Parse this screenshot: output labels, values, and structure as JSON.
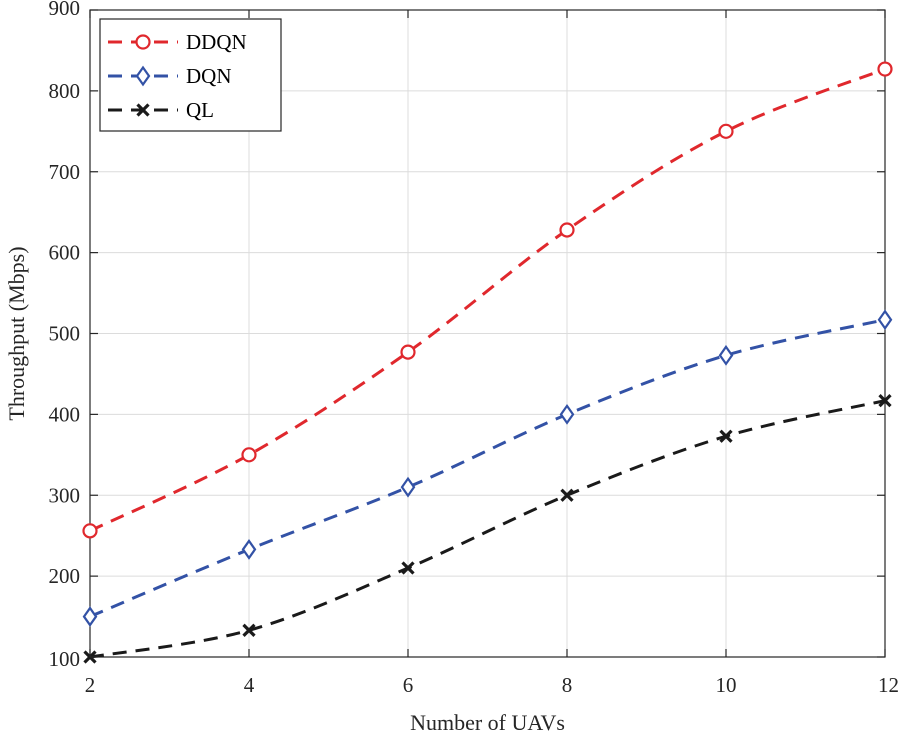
{
  "chart_data": {
    "type": "line",
    "title": "",
    "xlabel": "Number of UAVs",
    "ylabel": "Throughput (Mbps)",
    "x": [
      2,
      4,
      6,
      8,
      10,
      12
    ],
    "xticks": [
      2,
      4,
      6,
      8,
      10,
      12
    ],
    "yticks": [
      100,
      200,
      300,
      400,
      500,
      600,
      700,
      800,
      900
    ],
    "xlim": [
      2,
      12
    ],
    "ylim": [
      100,
      900
    ],
    "grid": true,
    "legend_position": "top-left",
    "series": [
      {
        "name": "DDQN",
        "color": "#e0282d",
        "marker": "circle",
        "values": [
          256,
          350,
          477,
          628,
          750,
          827
        ]
      },
      {
        "name": "DQN",
        "color": "#3352a6",
        "marker": "diamond",
        "values": [
          150,
          233,
          310,
          400,
          473,
          517
        ]
      },
      {
        "name": "QL",
        "color": "#1a1a1a",
        "marker": "cross",
        "values": [
          100,
          133,
          210,
          300,
          373,
          417
        ]
      }
    ]
  }
}
